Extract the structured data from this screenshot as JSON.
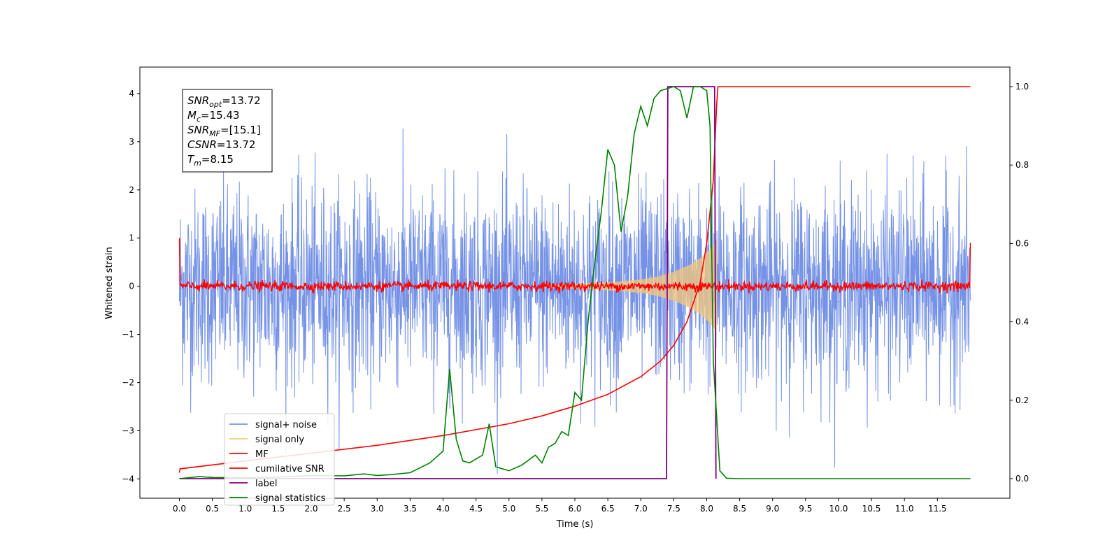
{
  "chart_data": {
    "type": "line",
    "title": "",
    "xlabel": "Time (s)",
    "ylabel": "Whitened strain",
    "x_range": [
      -0.6,
      12.6
    ],
    "y_left_range": [
      -4.4,
      4.55
    ],
    "y_right_range": [
      -0.05,
      1.05
    ],
    "x_ticks": [
      0.0,
      0.5,
      1.0,
      1.5,
      2.0,
      2.5,
      3.0,
      3.5,
      4.0,
      4.5,
      5.0,
      5.5,
      6.0,
      6.5,
      7.0,
      7.5,
      8.0,
      8.5,
      9.0,
      9.5,
      10.0,
      10.5,
      11.0,
      11.5
    ],
    "x_tick_labels": [
      "0.0",
      "0.5",
      "1.0",
      "1.5",
      "2.0",
      "2.5",
      "3.0",
      "3.5",
      "4.0",
      "4.5",
      "5.0",
      "5.5",
      "6.0",
      "6.5",
      "7.0",
      "7.5",
      "8.0",
      "8.5",
      "9.0",
      "9.5",
      "10.0",
      "10.5",
      "11.0",
      "11.5"
    ],
    "y_left_ticks": [
      -4,
      -3,
      -2,
      -1,
      0,
      1,
      2,
      3,
      4
    ],
    "y_left_tick_labels": [
      "−4",
      "−3",
      "−2",
      "−1",
      "0",
      "1",
      "2",
      "3",
      "4"
    ],
    "y_right_ticks": [
      0.0,
      0.2,
      0.4,
      0.6,
      0.8,
      1.0
    ],
    "y_right_tick_labels": [
      "0.0",
      "0.2",
      "0.4",
      "0.6",
      "0.8",
      "1.0"
    ],
    "grid": false,
    "legend_position": "lower-left",
    "info_box": [
      {
        "main": "SNR",
        "sub": "opt",
        "value": "=13.72"
      },
      {
        "main": "M",
        "sub": "c",
        "value": "=15.43"
      },
      {
        "main": "SNR",
        "sub": "MF",
        "value": "=[15.1]"
      },
      {
        "main": "CSNR",
        "sub": "",
        "value": "=13.72"
      },
      {
        "main": "T",
        "sub": "m",
        "value": "=8.15"
      }
    ],
    "series": [
      {
        "name": "signal+ noise",
        "axis": "left",
        "color": "#7592e6",
        "description": "noisy whitened strain, std about 1, spanning 0.0 to 12.0 s, peaks between about -3.9 and 4.2"
      },
      {
        "name": "signal only",
        "axis": "left",
        "color": "#f5c77a",
        "x": [
          5.5,
          6.0,
          6.5,
          7.0,
          7.25,
          7.5,
          7.75,
          7.9,
          8.0,
          8.1,
          8.15
        ],
        "envelope": [
          0.02,
          0.05,
          0.08,
          0.14,
          0.2,
          0.3,
          0.45,
          0.58,
          0.7,
          0.85,
          0.95
        ]
      },
      {
        "name": "MF",
        "axis": "left",
        "color": "#ff0000",
        "description": "matched-filter output near 0, amplitude about 0.15, starting at 1.0 at t=0 and ending at 0.9 at t=12.0"
      },
      {
        "name": "cumilative SNR",
        "axis": "right",
        "color": "#ff0000",
        "x": [
          0.0,
          0.01,
          1.0,
          2.0,
          3.0,
          4.0,
          5.0,
          5.5,
          6.0,
          6.5,
          7.0,
          7.3,
          7.5,
          7.7,
          7.9,
          8.0,
          8.1,
          8.15,
          8.17,
          12.0
        ],
        "values": [
          0.015,
          0.025,
          0.045,
          0.065,
          0.085,
          0.11,
          0.14,
          0.16,
          0.185,
          0.215,
          0.26,
          0.3,
          0.34,
          0.4,
          0.5,
          0.6,
          0.76,
          0.95,
          1.0,
          1.0
        ]
      },
      {
        "name": "label",
        "axis": "right",
        "color": "#800080",
        "x": [
          0.0,
          7.39,
          7.41,
          8.12,
          8.14
        ],
        "values": [
          0.0,
          0.0,
          1.0,
          1.0,
          0.0
        ]
      },
      {
        "name": "signal statistics",
        "axis": "right",
        "color": "#008000",
        "x": [
          0.0,
          0.3,
          0.5,
          1.0,
          1.5,
          2.0,
          2.5,
          2.8,
          3.0,
          3.2,
          3.5,
          3.8,
          4.0,
          4.1,
          4.2,
          4.3,
          4.4,
          4.6,
          4.7,
          4.8,
          5.0,
          5.2,
          5.4,
          5.5,
          5.6,
          5.7,
          5.8,
          5.9,
          6.0,
          6.1,
          6.2,
          6.3,
          6.4,
          6.5,
          6.6,
          6.7,
          6.8,
          6.9,
          7.0,
          7.1,
          7.2,
          7.3,
          7.5,
          7.6,
          7.7,
          7.8,
          7.9,
          8.0,
          8.05,
          8.1,
          8.2,
          8.3,
          8.5,
          12.0
        ],
        "values": [
          0.0,
          0.005,
          0.003,
          0.002,
          0.004,
          0.008,
          0.007,
          0.012,
          0.008,
          0.01,
          0.015,
          0.04,
          0.07,
          0.28,
          0.1,
          0.045,
          0.04,
          0.06,
          0.14,
          0.03,
          0.02,
          0.035,
          0.06,
          0.04,
          0.08,
          0.09,
          0.12,
          0.11,
          0.22,
          0.2,
          0.4,
          0.55,
          0.68,
          0.84,
          0.8,
          0.63,
          0.72,
          0.88,
          0.95,
          0.9,
          0.97,
          0.99,
          1.0,
          0.99,
          0.92,
          1.0,
          1.0,
          0.99,
          0.9,
          0.3,
          0.02,
          0.001,
          0.0,
          0.0
        ]
      }
    ]
  },
  "legend": [
    {
      "label": "signal+ noise",
      "color": "#7592e6"
    },
    {
      "label": "signal only",
      "color": "#f5c77a"
    },
    {
      "label": "MF",
      "color": "#ff0000"
    },
    {
      "label": "cumilative SNR",
      "color": "#ff0000"
    },
    {
      "label": "label",
      "color": "#800080"
    },
    {
      "label": "signal statistics",
      "color": "#008000"
    }
  ]
}
